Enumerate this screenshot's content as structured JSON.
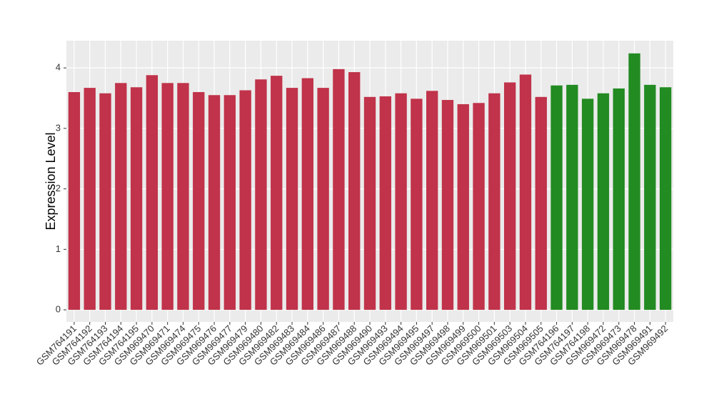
{
  "chart_data": {
    "type": "bar",
    "y_label": "Expression Level",
    "categories": [
      "GSM764191",
      "GSM764192",
      "GSM764193",
      "GSM764194",
      "GSM764195",
      "GSM969470",
      "GSM969471",
      "GSM969474",
      "GSM969475",
      "GSM969476",
      "GSM969477",
      "GSM969479",
      "GSM969480",
      "GSM969482",
      "GSM969483",
      "GSM969484",
      "GSM969486",
      "GSM969487",
      "GSM969488",
      "GSM969490",
      "GSM969493",
      "GSM969494",
      "GSM969495",
      "GSM969497",
      "GSM969498",
      "GSM969499",
      "GSM969500",
      "GSM969501",
      "GSM969503",
      "GSM969504",
      "GSM969505",
      "GSM764196",
      "GSM764197",
      "GSM764198",
      "GSM969472",
      "GSM969473",
      "GSM969478",
      "GSM969491",
      "GSM969492"
    ],
    "values": [
      3.6,
      3.67,
      3.58,
      3.75,
      3.68,
      3.88,
      3.75,
      3.75,
      3.6,
      3.55,
      3.55,
      3.63,
      3.81,
      3.87,
      3.67,
      3.83,
      3.67,
      3.98,
      3.93,
      3.52,
      3.53,
      3.58,
      3.49,
      3.62,
      3.47,
      3.4,
      3.42,
      3.58,
      3.76,
      3.89,
      3.52,
      3.71,
      3.72,
      3.49,
      3.58,
      3.66,
      4.24,
      3.72,
      3.68
    ],
    "colors": [
      "#c0334a",
      "#c0334a",
      "#c0334a",
      "#c0334a",
      "#c0334a",
      "#c0334a",
      "#c0334a",
      "#c0334a",
      "#c0334a",
      "#c0334a",
      "#c0334a",
      "#c0334a",
      "#c0334a",
      "#c0334a",
      "#c0334a",
      "#c0334a",
      "#c0334a",
      "#c0334a",
      "#c0334a",
      "#c0334a",
      "#c0334a",
      "#c0334a",
      "#c0334a",
      "#c0334a",
      "#c0334a",
      "#c0334a",
      "#c0334a",
      "#c0334a",
      "#c0334a",
      "#c0334a",
      "#c0334a",
      "#228b22",
      "#228b22",
      "#228b22",
      "#228b22",
      "#228b22",
      "#228b22",
      "#228b22",
      "#228b22"
    ],
    "ylim": [
      -0.2,
      4.45
    ],
    "yticks": [
      0,
      1,
      2,
      3,
      4
    ],
    "grid": true
  }
}
